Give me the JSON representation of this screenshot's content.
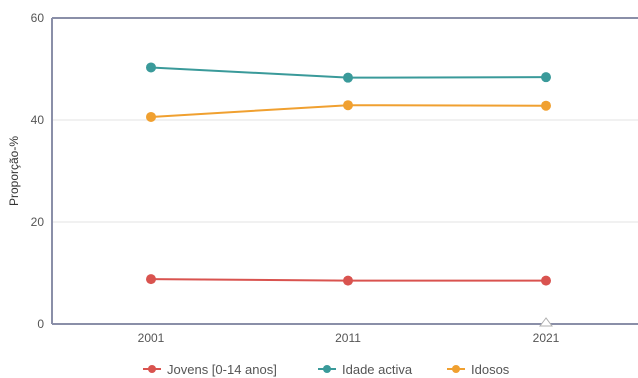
{
  "chart_data": {
    "type": "line",
    "categories": [
      "2001",
      "2011",
      "2021"
    ],
    "ylabel": "Proporção-%",
    "ylim": [
      0,
      60
    ],
    "yticks": [
      "0",
      "20",
      "40",
      "60"
    ],
    "grid": true,
    "legend_position": "bottom",
    "series": [
      {
        "name": "Jovens [0-14 anos]",
        "color": "#d9534f",
        "values": [
          8.8,
          8.5,
          8.5
        ]
      },
      {
        "name": "Idade activa",
        "color": "#3a9a9a",
        "values": [
          50.3,
          48.3,
          48.4
        ]
      },
      {
        "name": "Idosos",
        "color": "#f0a030",
        "values": [
          40.6,
          42.9,
          42.8
        ]
      }
    ]
  }
}
